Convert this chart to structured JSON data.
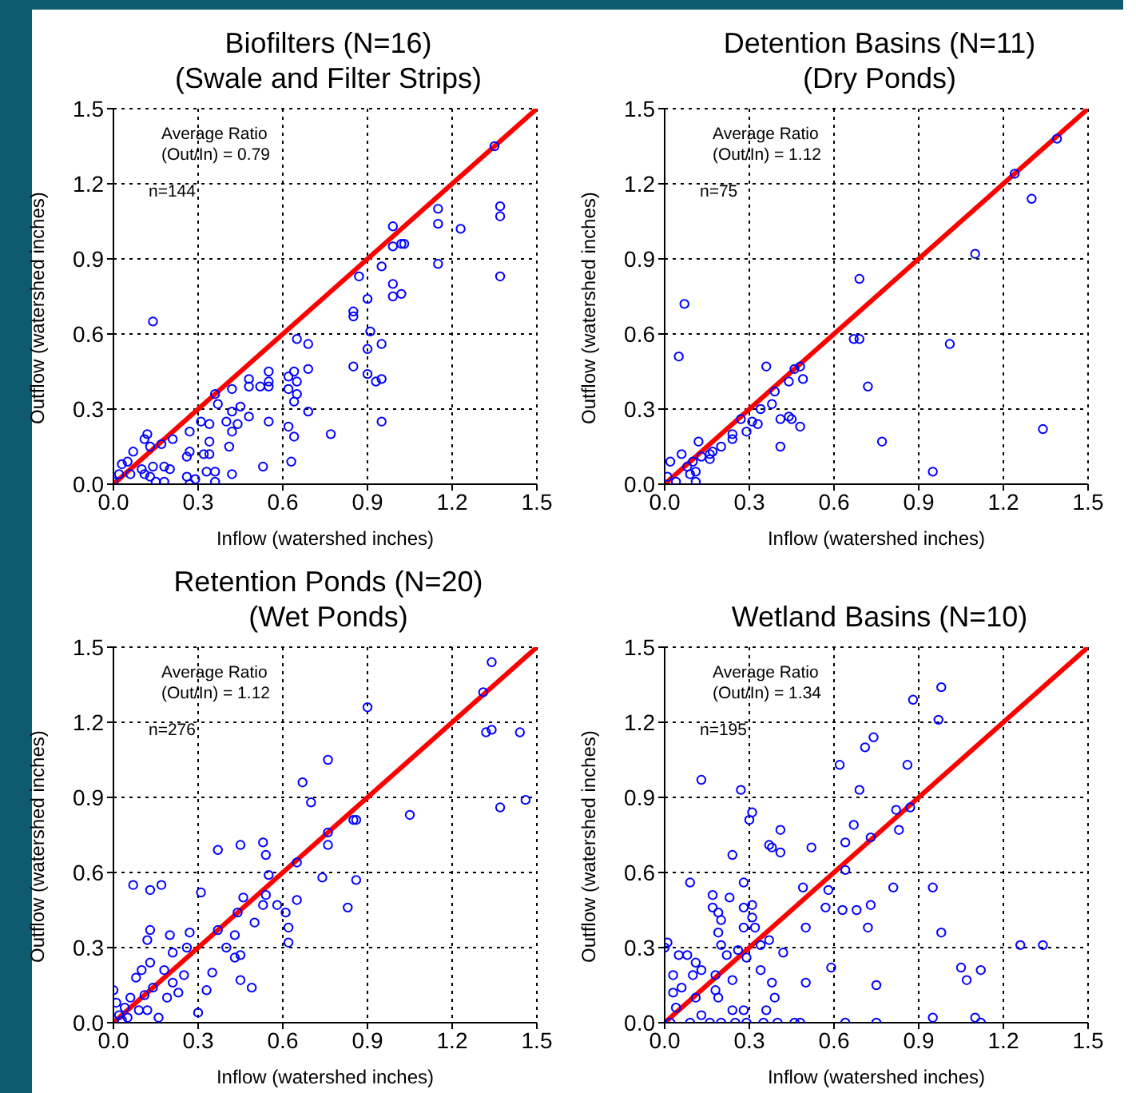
{
  "chart_data": [
    {
      "type": "scatter",
      "title": "Biofilters (N=16)",
      "subtitle": "(Swale and Filter Strips)",
      "xlabel": "Inflow (watershed inches)",
      "ylabel": "Outflow (watershed inches)",
      "annotations": [
        "Average Ratio",
        "(Out/In) = 0.79",
        "n=144"
      ],
      "xlim": [
        0,
        1.5
      ],
      "ylim": [
        0,
        1.5
      ],
      "xticks": [
        {
          "value": 0,
          "label": "0.0"
        },
        {
          "value": 0.3,
          "label": "0.3"
        },
        {
          "value": 0.6,
          "label": "0.6"
        },
        {
          "value": 0.9,
          "label": "0.9"
        },
        {
          "value": 1.2,
          "label": "1.2"
        },
        {
          "value": 1.5,
          "label": "1.5"
        }
      ],
      "yticks": [
        {
          "value": 0,
          "label": "0.0"
        },
        {
          "value": 0.3,
          "label": "0.3"
        },
        {
          "value": 0.6,
          "label": "0.6"
        },
        {
          "value": 0.9,
          "label": "0.9"
        },
        {
          "value": 1.2,
          "label": "1.2"
        },
        {
          "value": 1.5,
          "label": "1.5"
        }
      ],
      "grid": true,
      "series": [
        {
          "marker": "circle",
          "color": "#0000ff",
          "x": [
            1.35,
            1.37,
            1.37,
            1.37,
            1.15,
            1.15,
            1.23,
            1.15,
            0.99,
            0.99,
            1.02,
            1.03,
            0.95,
            0.99,
            1.02,
            0.99,
            0.87,
            0.9,
            0.85,
            0.85,
            0.91,
            0.9,
            0.95,
            0.85,
            0.9,
            0.95,
            0.93,
            0.95,
            0.14,
            0.65,
            0.69,
            0.69,
            0.64,
            0.62,
            0.65,
            0.62,
            0.65,
            0.64,
            0.69,
            0.77,
            0.62,
            0.64,
            0.63,
            0.55,
            0.55,
            0.55,
            0.48,
            0.48,
            0.52,
            0.42,
            0.45,
            0.48,
            0.55,
            0.42,
            0.36,
            0.37,
            0.4,
            0.44,
            0.42,
            0.34,
            0.31,
            0.27,
            0.34,
            0.41,
            0.34,
            0.32,
            0.27,
            0.26,
            0.21,
            0.42,
            0.53,
            0.36,
            0.33,
            0.29,
            0.27,
            0.26,
            0.36,
            0.12,
            0.11,
            0.13,
            0.17,
            0.07,
            0.03,
            0.05,
            0.1,
            0.14,
            0.18,
            0.11,
            0.13,
            0.15,
            0.18,
            0.0,
            0.02,
            0.06,
            0.2
          ],
          "values": [
            1.35,
            1.11,
            1.07,
            0.83,
            1.1,
            1.04,
            1.02,
            0.88,
            1.03,
            0.95,
            0.96,
            0.96,
            0.87,
            0.8,
            0.76,
            0.75,
            0.83,
            0.74,
            0.69,
            0.67,
            0.61,
            0.54,
            0.56,
            0.47,
            0.44,
            0.42,
            0.41,
            0.25,
            0.65,
            0.58,
            0.56,
            0.46,
            0.45,
            0.43,
            0.41,
            0.38,
            0.36,
            0.33,
            0.29,
            0.2,
            0.23,
            0.19,
            0.09,
            0.45,
            0.41,
            0.39,
            0.42,
            0.39,
            0.39,
            0.38,
            0.31,
            0.27,
            0.25,
            0.29,
            0.36,
            0.32,
            0.25,
            0.24,
            0.21,
            0.24,
            0.25,
            0.21,
            0.17,
            0.15,
            0.12,
            0.12,
            0.13,
            0.11,
            0.18,
            0.04,
            0.07,
            0.05,
            0.05,
            0.02,
            0.0,
            0.03,
            0.01,
            0.2,
            0.18,
            0.15,
            0.16,
            0.13,
            0.08,
            0.09,
            0.06,
            0.07,
            0.07,
            0.04,
            0.03,
            0.01,
            0.01,
            0.01,
            0.04,
            0.04,
            0.06
          ]
        },
        {
          "type": "line",
          "color": "#ff0000",
          "x": [
            0,
            1.5
          ],
          "values": [
            0,
            1.5
          ]
        }
      ]
    },
    {
      "type": "scatter",
      "title": "Detention Basins (N=11)",
      "subtitle": "(Dry Ponds)",
      "xlabel": "Inflow (watershed inches)",
      "ylabel": "Outflow (watershed inches)",
      "annotations": [
        "Average Ratio",
        "(Out/In) = 1.12",
        "n=75"
      ],
      "xlim": [
        0,
        1.5
      ],
      "ylim": [
        0,
        1.5
      ],
      "xticks": [
        {
          "value": 0,
          "label": "0.0"
        },
        {
          "value": 0.3,
          "label": "0.3"
        },
        {
          "value": 0.6,
          "label": "0.6"
        },
        {
          "value": 0.9,
          "label": "0.9"
        },
        {
          "value": 1.2,
          "label": "1.2"
        },
        {
          "value": 1.5,
          "label": "1.5"
        }
      ],
      "yticks": [
        {
          "value": 0,
          "label": "0.0"
        },
        {
          "value": 0.3,
          "label": "0.3"
        },
        {
          "value": 0.6,
          "label": "0.6"
        },
        {
          "value": 0.9,
          "label": "0.9"
        },
        {
          "value": 1.2,
          "label": "1.2"
        },
        {
          "value": 1.5,
          "label": "1.5"
        }
      ],
      "grid": true,
      "series": [
        {
          "marker": "circle",
          "color": "#0000ff",
          "x": [
            1.39,
            1.24,
            1.3,
            1.1,
            0.69,
            0.67,
            0.69,
            1.01,
            0.72,
            0.77,
            0.95,
            1.34,
            0.07,
            0.05,
            0.36,
            0.48,
            0.46,
            0.49,
            0.44,
            0.39,
            0.38,
            0.34,
            0.41,
            0.44,
            0.45,
            0.48,
            0.41,
            0.31,
            0.33,
            0.29,
            0.24,
            0.24,
            0.27,
            0.2,
            0.17,
            0.16,
            0.13,
            0.12,
            0.06,
            0.1,
            0.11,
            0.09,
            0.04,
            0.02,
            0.01,
            0.11,
            0.16,
            0.08
          ],
          "values": [
            1.38,
            1.24,
            1.14,
            0.92,
            0.82,
            0.58,
            0.58,
            0.56,
            0.39,
            0.17,
            0.05,
            0.22,
            0.72,
            0.51,
            0.47,
            0.47,
            0.46,
            0.42,
            0.41,
            0.37,
            0.32,
            0.3,
            0.26,
            0.27,
            0.26,
            0.23,
            0.15,
            0.25,
            0.24,
            0.21,
            0.2,
            0.18,
            0.26,
            0.15,
            0.13,
            0.12,
            0.11,
            0.17,
            0.12,
            0.09,
            0.05,
            0.04,
            0.01,
            0.09,
            0.03,
            0.01,
            0.1,
            0.07
          ]
        },
        {
          "type": "line",
          "color": "#ff0000",
          "x": [
            0,
            1.5
          ],
          "values": [
            0,
            1.5
          ]
        }
      ]
    },
    {
      "type": "scatter",
      "title": "Retention Ponds (N=20)",
      "subtitle": "(Wet Ponds)",
      "xlabel": "Inflow (watershed inches)",
      "ylabel": "Outflow (watershed inches)",
      "annotations": [
        "Average Ratio",
        "(Out/In) = 1.12",
        "n=276"
      ],
      "xlim": [
        0,
        1.5
      ],
      "ylim": [
        0,
        1.5
      ],
      "xticks": [
        {
          "value": 0,
          "label": "0.0"
        },
        {
          "value": 0.3,
          "label": "0.3"
        },
        {
          "value": 0.6,
          "label": "0.6"
        },
        {
          "value": 0.9,
          "label": "0.9"
        },
        {
          "value": 1.2,
          "label": "1.2"
        },
        {
          "value": 1.5,
          "label": "1.5"
        }
      ],
      "yticks": [
        {
          "value": 0,
          "label": "0.0"
        },
        {
          "value": 0.3,
          "label": "0.3"
        },
        {
          "value": 0.6,
          "label": "0.6"
        },
        {
          "value": 0.9,
          "label": "0.9"
        },
        {
          "value": 1.2,
          "label": "1.2"
        },
        {
          "value": 1.5,
          "label": "1.5"
        }
      ],
      "grid": true,
      "series": [
        {
          "marker": "circle",
          "color": "#0000ff",
          "x": [
            1.34,
            1.31,
            0.9,
            1.32,
            1.34,
            1.44,
            1.46,
            1.37,
            1.05,
            0.76,
            0.67,
            0.7,
            0.76,
            0.76,
            0.85,
            0.86,
            0.53,
            0.45,
            0.37,
            0.54,
            0.65,
            0.74,
            0.86,
            0.83,
            0.07,
            0.17,
            0.13,
            0.31,
            0.55,
            0.54,
            0.46,
            0.53,
            0.58,
            0.65,
            0.61,
            0.62,
            0.62,
            0.5,
            0.44,
            0.43,
            0.37,
            0.4,
            0.45,
            0.43,
            0.35,
            0.33,
            0.45,
            0.49,
            0.3,
            0.13,
            0.12,
            0.2,
            0.27,
            0.26,
            0.21,
            0.13,
            0.1,
            0.08,
            0.18,
            0.25,
            0.23,
            0.19,
            0.14,
            0.11,
            0.06,
            0.04,
            0.02,
            0.0,
            0.05,
            0.09,
            0.16,
            0.03,
            0.01,
            0.12,
            0.21
          ],
          "values": [
            1.44,
            1.32,
            1.26,
            1.16,
            1.17,
            1.16,
            0.89,
            0.86,
            0.83,
            1.05,
            0.96,
            0.88,
            0.76,
            0.71,
            0.81,
            0.81,
            0.72,
            0.71,
            0.69,
            0.67,
            0.64,
            0.58,
            0.57,
            0.46,
            0.55,
            0.55,
            0.53,
            0.52,
            0.59,
            0.51,
            0.5,
            0.47,
            0.47,
            0.49,
            0.44,
            0.38,
            0.32,
            0.4,
            0.44,
            0.35,
            0.37,
            0.3,
            0.27,
            0.26,
            0.2,
            0.13,
            0.17,
            0.14,
            0.04,
            0.37,
            0.33,
            0.35,
            0.36,
            0.3,
            0.28,
            0.24,
            0.21,
            0.18,
            0.21,
            0.19,
            0.12,
            0.1,
            0.14,
            0.11,
            0.1,
            0.06,
            0.03,
            0.13,
            0.02,
            0.05,
            0.02,
            0.01,
            0.08,
            0.05,
            0.16
          ]
        },
        {
          "type": "line",
          "color": "#ff0000",
          "x": [
            0,
            1.5
          ],
          "values": [
            0,
            1.5
          ]
        }
      ]
    },
    {
      "type": "scatter",
      "title": "Wetland Basins (N=10)",
      "xlabel": "Inflow (watershed inches)",
      "ylabel": "Outflow (watershed inches)",
      "annotations": [
        "Average Ratio",
        "(Out/In) = 1.34",
        "n=195"
      ],
      "xlim": [
        0,
        1.5
      ],
      "ylim": [
        0,
        1.5
      ],
      "xticks": [
        {
          "value": 0,
          "label": "0.0"
        },
        {
          "value": 0.3,
          "label": "0.3"
        },
        {
          "value": 0.6,
          "label": "0.6"
        },
        {
          "value": 0.9,
          "label": "0.9"
        },
        {
          "value": 1.2,
          "label": "1.2"
        },
        {
          "value": 1.5,
          "label": "1.5"
        }
      ],
      "yticks": [
        {
          "value": 0,
          "label": "0.0"
        },
        {
          "value": 0.3,
          "label": "0.3"
        },
        {
          "value": 0.6,
          "label": "0.6"
        },
        {
          "value": 0.9,
          "label": "0.9"
        },
        {
          "value": 1.2,
          "label": "1.2"
        },
        {
          "value": 1.5,
          "label": "1.5"
        }
      ],
      "grid": true,
      "series": [
        {
          "marker": "circle",
          "color": "#0000ff",
          "x": [
            0.98,
            0.88,
            0.97,
            0.74,
            0.71,
            0.62,
            0.86,
            0.69,
            0.13,
            0.27,
            0.31,
            0.3,
            0.41,
            0.37,
            0.38,
            0.41,
            0.52,
            0.24,
            0.64,
            0.67,
            0.73,
            0.82,
            0.83,
            0.87,
            0.09,
            0.28,
            0.49,
            0.58,
            0.64,
            0.81,
            0.95,
            0.98,
            0.63,
            0.68,
            0.73,
            0.72,
            0.5,
            0.57,
            0.17,
            0.23,
            0.17,
            0.19,
            0.2,
            0.28,
            0.31,
            0.31,
            0.28,
            0.32,
            0.34,
            0.37,
            0.42,
            0.19,
            0.2,
            0.22,
            0.26,
            0.29,
            0.05,
            0.08,
            0.01,
            0.0,
            0.03,
            0.11,
            0.13,
            0.1,
            0.18,
            0.24,
            0.34,
            0.38,
            0.39,
            0.36,
            0.18,
            0.19,
            0.24,
            0.28,
            0.06,
            0.03,
            0.11,
            0.04,
            0.13,
            0.5,
            0.59,
            0.75,
            1.05,
            1.07,
            1.12,
            1.1,
            1.12,
            1.26,
            1.34,
            0.95,
            0.02,
            0.09,
            0.16,
            0.2,
            0.25,
            0.29,
            0.35,
            0.4,
            0.46,
            0.48,
            0.64,
            0.75
          ],
          "values": [
            1.34,
            1.29,
            1.21,
            1.14,
            1.1,
            1.03,
            1.03,
            0.93,
            0.97,
            0.93,
            0.84,
            0.81,
            0.77,
            0.71,
            0.7,
            0.68,
            0.7,
            0.67,
            0.72,
            0.79,
            0.74,
            0.85,
            0.77,
            0.86,
            0.56,
            0.56,
            0.54,
            0.53,
            0.61,
            0.54,
            0.54,
            0.36,
            0.45,
            0.45,
            0.47,
            0.38,
            0.38,
            0.46,
            0.51,
            0.5,
            0.46,
            0.44,
            0.41,
            0.46,
            0.47,
            0.42,
            0.38,
            0.38,
            0.31,
            0.33,
            0.28,
            0.36,
            0.31,
            0.27,
            0.29,
            0.26,
            0.27,
            0.27,
            0.32,
            0.3,
            0.19,
            0.24,
            0.21,
            0.19,
            0.19,
            0.17,
            0.21,
            0.16,
            0.1,
            0.05,
            0.13,
            0.1,
            0.05,
            0.05,
            0.14,
            0.12,
            0.1,
            0.06,
            0.03,
            0.16,
            0.22,
            0.15,
            0.22,
            0.17,
            0.21,
            0.02,
            0.0,
            0.31,
            0.31,
            0.02,
            0,
            0,
            0,
            0,
            0,
            0,
            0,
            0,
            0,
            0,
            0,
            0
          ]
        },
        {
          "type": "line",
          "color": "#ff0000",
          "x": [
            0,
            1.5
          ],
          "values": [
            0,
            1.5
          ]
        }
      ]
    }
  ]
}
